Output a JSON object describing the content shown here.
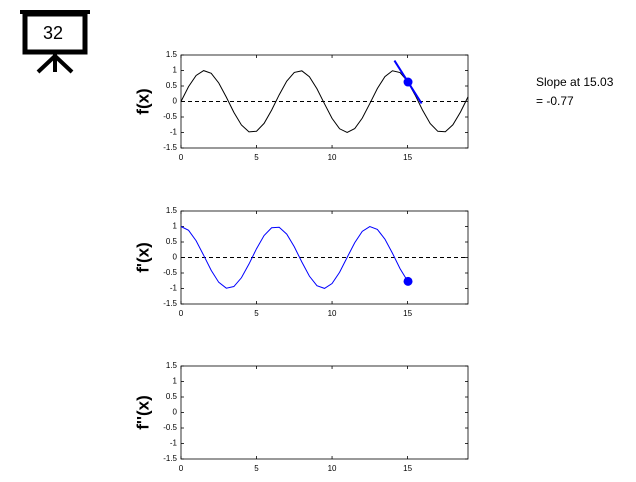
{
  "badge": "32",
  "annotation": [
    "Slope at 15.03",
    "= -0.77"
  ],
  "chart_data": [
    {
      "type": "line",
      "ylabel": "f(x)",
      "xlim": [
        0,
        19
      ],
      "ylim": [
        -1.5,
        1.5
      ],
      "xticks": [
        0,
        5,
        10,
        15
      ],
      "yticks": [
        -1.5,
        -1,
        -0.5,
        0,
        0.5,
        1,
        1.5
      ],
      "zero_line": true,
      "series": [
        {
          "color": "#000000",
          "x": [
            0,
            0.5,
            1,
            1.5,
            2,
            2.5,
            3,
            3.5,
            4,
            4.5,
            5,
            5.5,
            6,
            6.5,
            7,
            7.5,
            8,
            8.5,
            9,
            9.5,
            10,
            10.5,
            11,
            11.5,
            12,
            12.5,
            13,
            13.5,
            14,
            14.5,
            15,
            15.5,
            16,
            16.5,
            17,
            17.5,
            18,
            18.5,
            19
          ],
          "values": [
            0,
            0.479,
            0.841,
            0.997,
            0.909,
            0.598,
            0.141,
            -0.351,
            -0.757,
            -0.978,
            -0.959,
            -0.706,
            -0.279,
            0.215,
            0.657,
            0.938,
            0.989,
            0.798,
            0.412,
            -0.075,
            -0.544,
            -0.88,
            -1,
            -0.875,
            -0.537,
            -0.066,
            0.42,
            0.804,
            0.991,
            0.935,
            0.65,
            0.207,
            -0.288,
            -0.712,
            -0.961,
            -0.976,
            -0.751,
            -0.342,
            0.15
          ]
        }
      ],
      "marker": {
        "x": 15.03,
        "y": 0.628,
        "color": "#0000ff"
      },
      "tangent_slope": -0.77
    },
    {
      "type": "line",
      "ylabel": "f'(x)",
      "xlim": [
        0,
        19
      ],
      "ylim": [
        -1.5,
        1.5
      ],
      "xticks": [
        0,
        5,
        10,
        15
      ],
      "yticks": [
        -1.5,
        -1,
        -0.5,
        0,
        0.5,
        1,
        1.5
      ],
      "zero_line": true,
      "series": [
        {
          "color": "#0000ff",
          "x": [
            0,
            0.5,
            1,
            1.5,
            2,
            2.5,
            3,
            3.5,
            4,
            4.5,
            5,
            5.5,
            6,
            6.5,
            7,
            7.5,
            8,
            8.5,
            9,
            9.5,
            10,
            10.5,
            11,
            11.5,
            12,
            12.5,
            13,
            13.5,
            14,
            14.5,
            15,
            15.03
          ],
          "values": [
            1,
            0.878,
            0.54,
            0.071,
            -0.416,
            -0.801,
            -0.99,
            -0.936,
            -0.654,
            -0.211,
            0.284,
            0.709,
            0.96,
            0.977,
            0.754,
            0.347,
            -0.146,
            -0.602,
            -0.911,
            -0.997,
            -0.839,
            -0.476,
            0.004,
            0.475,
            0.844,
            0.998,
            0.907,
            0.592,
            0.137,
            -0.358,
            -0.76,
            -0.77
          ]
        }
      ],
      "marker": {
        "x": 15.03,
        "y": -0.77,
        "color": "#0000ff"
      }
    },
    {
      "type": "line",
      "ylabel": "f''(x)",
      "xlim": [
        0,
        19
      ],
      "ylim": [
        -1.5,
        1.5
      ],
      "xticks": [
        0,
        5,
        10,
        15
      ],
      "yticks": [
        -1.5,
        -1,
        -0.5,
        0,
        0.5,
        1,
        1.5
      ],
      "zero_line": false,
      "series": []
    }
  ]
}
